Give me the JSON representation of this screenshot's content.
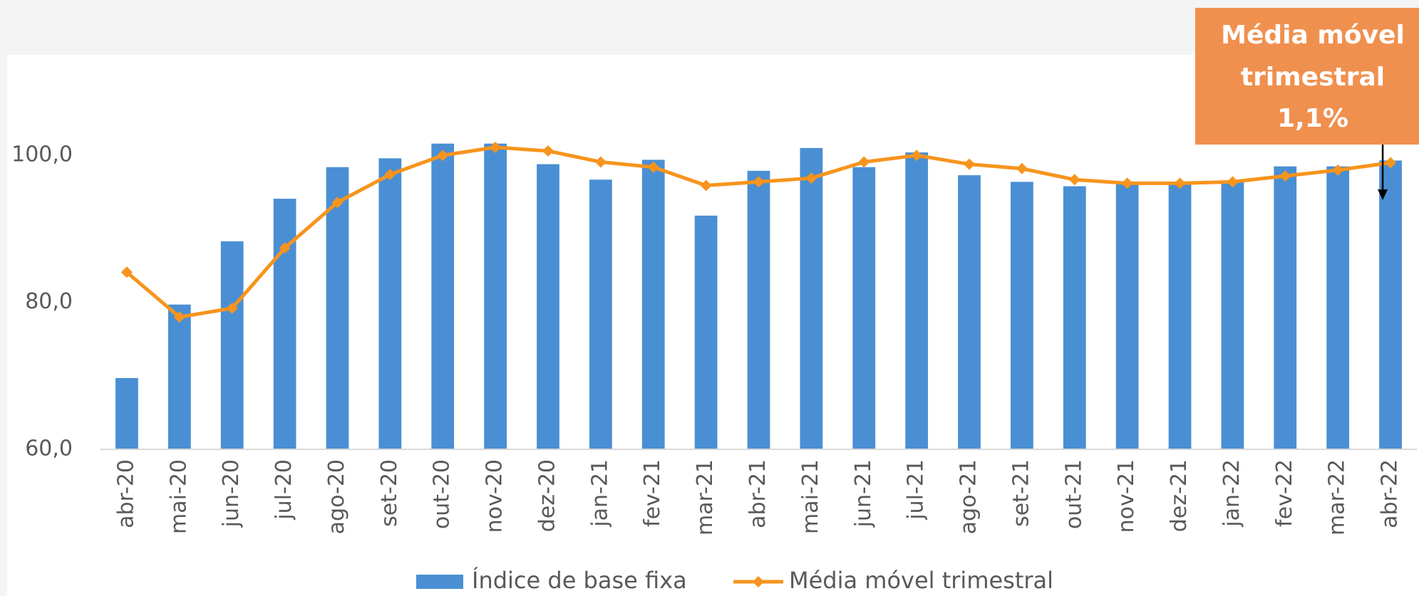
{
  "chart_data": {
    "type": "bar_line",
    "categories": [
      "abr-20",
      "mai-20",
      "jun-20",
      "jul-20",
      "ago-20",
      "set-20",
      "out-20",
      "nov-20",
      "dez-20",
      "jan-21",
      "fev-21",
      "mar-21",
      "abr-21",
      "mai-21",
      "jun-21",
      "jul-21",
      "ago-21",
      "set-21",
      "out-21",
      "nov-21",
      "dez-21",
      "jan-22",
      "fev-22",
      "mar-22",
      "abr-22"
    ],
    "series": [
      {
        "name": "Índice de base fixa",
        "type": "bar",
        "color": "#4a8fd4",
        "values": [
          69.7,
          79.7,
          88.3,
          94.1,
          98.4,
          99.6,
          101.6,
          101.6,
          98.8,
          96.7,
          99.4,
          91.8,
          97.9,
          101.0,
          98.4,
          100.4,
          97.3,
          96.4,
          95.8,
          96.2,
          96.2,
          96.4,
          98.5,
          98.5,
          99.3
        ]
      },
      {
        "name": "Média móvel trimestral",
        "type": "line",
        "color": "#f7941d",
        "values": [
          84.1,
          78.0,
          79.2,
          87.4,
          93.6,
          97.4,
          100.0,
          101.1,
          100.6,
          99.1,
          98.4,
          95.9,
          96.4,
          96.9,
          99.1,
          100.0,
          98.8,
          98.2,
          96.7,
          96.2,
          96.2,
          96.4,
          97.2,
          98.0,
          99.0
        ]
      }
    ],
    "ylim": [
      60,
      110
    ],
    "yticks": [
      {
        "value": 60,
        "label": "60,0"
      },
      {
        "value": 80,
        "label": "80,0"
      },
      {
        "value": 100,
        "label": "100,0"
      }
    ],
    "grid": false,
    "legend": "bottom",
    "annotation": {
      "lines": [
        "Média móvel",
        "trimestral",
        "1,1%"
      ],
      "color": "#f0904f",
      "target": 24
    }
  }
}
